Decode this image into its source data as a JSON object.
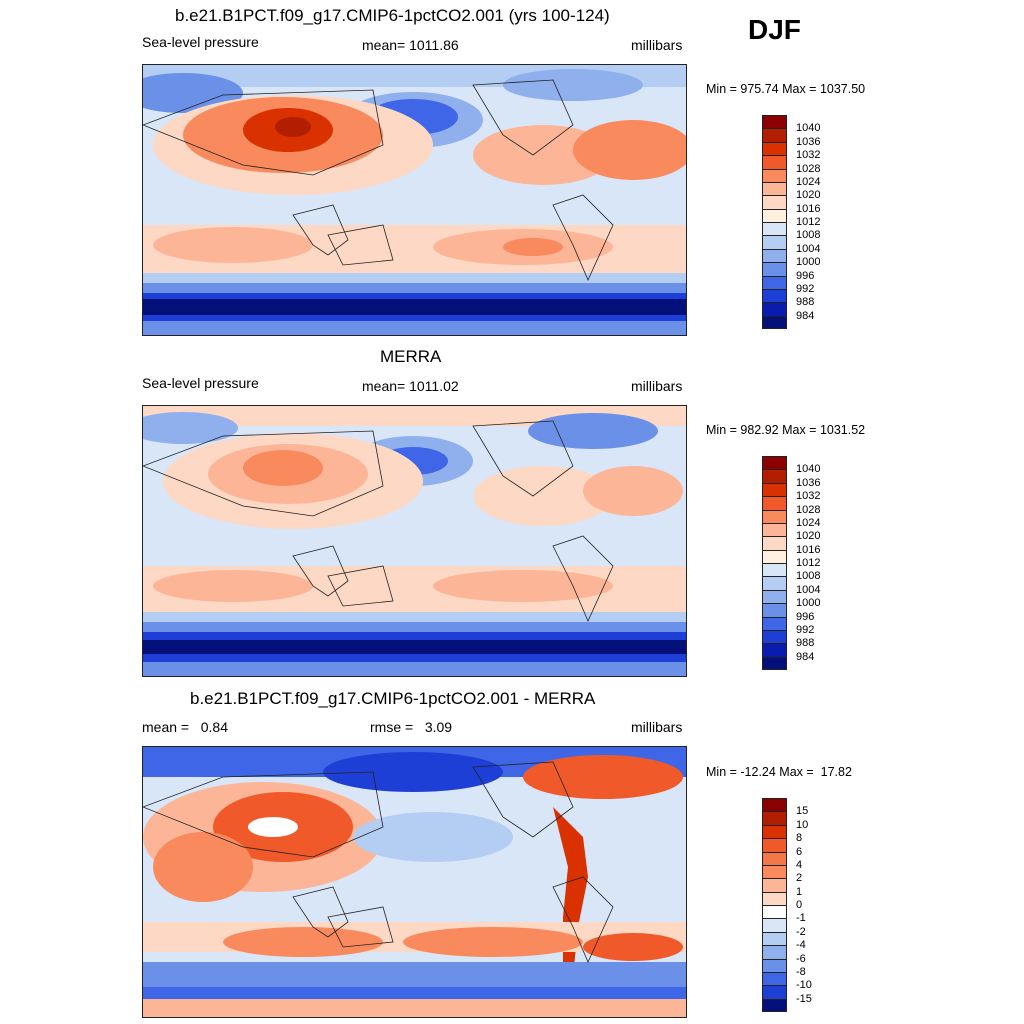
{
  "season": "DJF",
  "panels": [
    {
      "title": "b.e21.B1PCT.f09_g17.CMIP6-1pctCO2.001 (yrs 100-124)",
      "left_label": "Sea-level pressure",
      "mid_label": "mean= 1011.86",
      "right_label": "millibars",
      "minmax": "Min = 975.74 Max = 1037.50"
    },
    {
      "title": "MERRA",
      "left_label": "Sea-level pressure",
      "mid_label": "mean= 1011.02",
      "right_label": "millibars",
      "minmax": "Min = 982.92 Max = 1031.52"
    },
    {
      "title": "b.e21.B1PCT.f09_g17.CMIP6-1pctCO2.001 - MERRA",
      "left_label": "mean =   0.84",
      "mid_label": "rmse =   3.09",
      "right_label": "millibars",
      "minmax": "Min = -12.24 Max =  17.82"
    }
  ],
  "colorbars": {
    "slp_labels": [
      "1040",
      "1036",
      "1032",
      "1028",
      "1024",
      "1020",
      "1016",
      "1012",
      "1008",
      "1004",
      "1000",
      "996",
      "992",
      "988",
      "984"
    ],
    "slp_colors": [
      "#8b0000",
      "#b21e00",
      "#d93200",
      "#f05a2a",
      "#f88a5e",
      "#fcb697",
      "#fdd8c4",
      "#fff0e0",
      "#d8e6f8",
      "#b4cdf2",
      "#8fb0ec",
      "#6a90e8",
      "#3f66e6",
      "#1e3fd6",
      "#0a1cb0",
      "#04107a"
    ],
    "diff_labels": [
      "15",
      "10",
      "8",
      "6",
      "4",
      "2",
      "1",
      "0",
      "-1",
      "-2",
      "-4",
      "-6",
      "-8",
      "-10",
      "-15"
    ],
    "diff_colors": [
      "#8b0000",
      "#b21e00",
      "#d93200",
      "#f05a2a",
      "#f47748",
      "#f88a5e",
      "#fcb697",
      "#fdd8c4",
      "#ffffff",
      "#d8e6f8",
      "#b4cdf2",
      "#8fb0ec",
      "#6a90e8",
      "#3f66e6",
      "#1e3fd6",
      "#04107a"
    ]
  },
  "map_colors": {
    "ocean_base": "#d8e6f8",
    "light_red": "#fdd8c4",
    "mid_red": "#f88a5e",
    "strong_red": "#d93200",
    "dark_red": "#b21e00",
    "light_blue": "#b4cdf2",
    "mid_blue": "#6a90e8",
    "strong_blue": "#1e3fd6",
    "dark_blue": "#04107a"
  }
}
